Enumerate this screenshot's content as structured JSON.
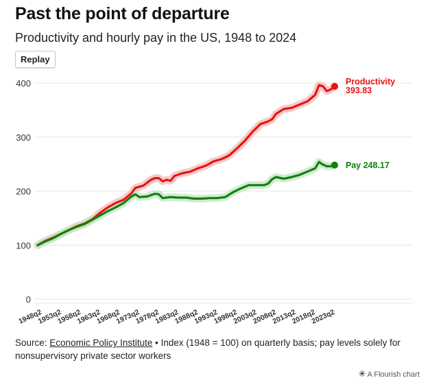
{
  "title": "Past the point of departure",
  "subtitle": "Productivity and hourly pay in the US, 1948 to 2024",
  "replay_label": "Replay",
  "source": {
    "prefix": "Source:",
    "link_text": "Economic Policy Institute",
    "note": "• Index (1948 = 100) on quarterly basis; pay levels solely for nonsupervisory private sector workers"
  },
  "credit": "A Flourish chart",
  "colors": {
    "productivity": "#e8140f",
    "pay": "#118012",
    "grid": "#e6e6e6"
  },
  "chart_data": {
    "type": "line",
    "title": "Past the point of departure",
    "subtitle": "Productivity and hourly pay in the US, 1948 to 2024",
    "x_tick_labels": [
      "1948q2",
      "1953q2",
      "1958q2",
      "1963q2",
      "1968q2",
      "1973q2",
      "1978q2",
      "1983q2",
      "1988q2",
      "1993q2",
      "1998q2",
      "2003q2",
      "2008q2",
      "2013q2",
      "2018q2",
      "2023q2"
    ],
    "y_ticks": [
      0,
      100,
      200,
      300,
      400
    ],
    "ylim": [
      0,
      400
    ],
    "xlim": [
      1948,
      2024
    ],
    "grid": true,
    "legend": "direct labels at line ends",
    "series": [
      {
        "name": "Productivity",
        "end_value": "393.83",
        "color": "#e8140f",
        "points": [
          [
            1948,
            100
          ],
          [
            1950,
            108
          ],
          [
            1952,
            114
          ],
          [
            1954,
            121
          ],
          [
            1956,
            128
          ],
          [
            1958,
            135
          ],
          [
            1960,
            140
          ],
          [
            1962,
            148
          ],
          [
            1964,
            160
          ],
          [
            1966,
            170
          ],
          [
            1968,
            178
          ],
          [
            1970,
            184
          ],
          [
            1972,
            196
          ],
          [
            1973,
            206
          ],
          [
            1975,
            210
          ],
          [
            1977,
            221
          ],
          [
            1978,
            224
          ],
          [
            1979,
            224
          ],
          [
            1980,
            218
          ],
          [
            1981,
            221
          ],
          [
            1982,
            219
          ],
          [
            1983,
            228
          ],
          [
            1985,
            233
          ],
          [
            1987,
            236
          ],
          [
            1989,
            242
          ],
          [
            1991,
            247
          ],
          [
            1993,
            255
          ],
          [
            1995,
            259
          ],
          [
            1997,
            266
          ],
          [
            1999,
            279
          ],
          [
            2001,
            293
          ],
          [
            2003,
            310
          ],
          [
            2005,
            324
          ],
          [
            2007,
            329
          ],
          [
            2008,
            333
          ],
          [
            2009,
            343
          ],
          [
            2011,
            352
          ],
          [
            2013,
            354
          ],
          [
            2015,
            360
          ],
          [
            2017,
            366
          ],
          [
            2018,
            372
          ],
          [
            2019,
            378
          ],
          [
            2020,
            396
          ],
          [
            2021,
            394
          ],
          [
            2022,
            385
          ],
          [
            2023,
            388
          ],
          [
            2024,
            393.83
          ]
        ]
      },
      {
        "name": "Pay",
        "end_value": "248.17",
        "color": "#118012",
        "points": [
          [
            1948,
            100
          ],
          [
            1950,
            107
          ],
          [
            1952,
            113
          ],
          [
            1954,
            121
          ],
          [
            1956,
            128
          ],
          [
            1958,
            134
          ],
          [
            1960,
            139
          ],
          [
            1962,
            147
          ],
          [
            1964,
            155
          ],
          [
            1966,
            163
          ],
          [
            1968,
            170
          ],
          [
            1970,
            178
          ],
          [
            1972,
            190
          ],
          [
            1973,
            194
          ],
          [
            1974,
            189
          ],
          [
            1976,
            190
          ],
          [
            1978,
            195
          ],
          [
            1979,
            194
          ],
          [
            1980,
            187
          ],
          [
            1982,
            189
          ],
          [
            1984,
            188
          ],
          [
            1986,
            188
          ],
          [
            1988,
            186
          ],
          [
            1990,
            186
          ],
          [
            1992,
            187
          ],
          [
            1994,
            187
          ],
          [
            1996,
            189
          ],
          [
            1998,
            198
          ],
          [
            2000,
            205
          ],
          [
            2002,
            211
          ],
          [
            2004,
            211
          ],
          [
            2006,
            211
          ],
          [
            2007,
            214
          ],
          [
            2008,
            222
          ],
          [
            2009,
            226
          ],
          [
            2011,
            223
          ],
          [
            2013,
            226
          ],
          [
            2015,
            230
          ],
          [
            2017,
            236
          ],
          [
            2019,
            242
          ],
          [
            2020,
            254
          ],
          [
            2021,
            249
          ],
          [
            2022,
            246
          ],
          [
            2023,
            246
          ],
          [
            2024,
            248.17
          ]
        ]
      }
    ]
  }
}
